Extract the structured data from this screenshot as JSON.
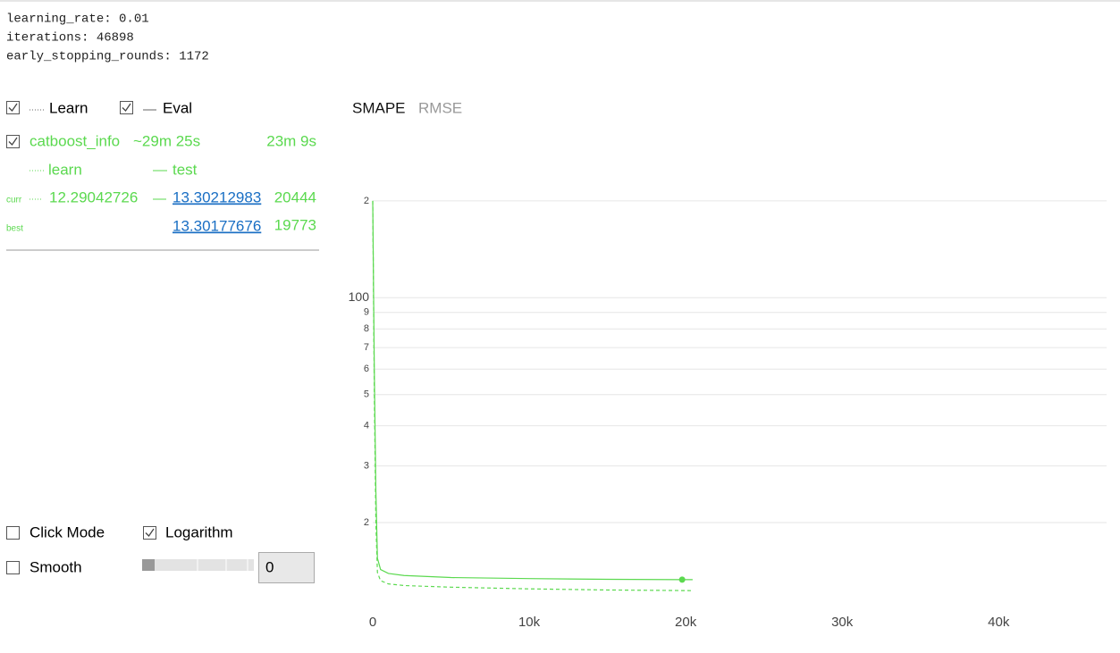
{
  "params": [
    "learning_rate: 0.01",
    "iterations: 46898",
    "early_stopping_rounds: 1172"
  ],
  "legend": {
    "learn": "Learn",
    "eval": "Eval"
  },
  "run": {
    "name": "catboost_info",
    "eta": "~29m 25s",
    "elapsed": "23m 9s",
    "learn_label": "learn",
    "test_label": "test",
    "curr_label": "curr",
    "curr_learn": "12.29042726",
    "curr_test": "13.30212983",
    "curr_iter": "20444",
    "best_label": "best",
    "best_test": "13.30177676",
    "best_iter": "19773"
  },
  "tabs": [
    "SMAPE",
    "RMSE"
  ],
  "controls": {
    "click_mode": "Click Mode",
    "logarithm": "Logarithm",
    "smooth": "Smooth",
    "smooth_value": "0"
  },
  "chart_data": {
    "type": "line",
    "log_y": true,
    "grid": true,
    "x": [
      0,
      100,
      200,
      300,
      500,
      1000,
      2000,
      5000,
      10000,
      15000,
      19773,
      20444
    ],
    "series": [
      {
        "name": "test",
        "color": "#5bd94f",
        "dashed": false,
        "values": [
          200,
          60,
          25,
          15.5,
          14.3,
          13.9,
          13.7,
          13.5,
          13.4,
          13.33,
          13.30177676,
          13.30212983
        ]
      },
      {
        "name": "learn",
        "color": "#5bd94f",
        "dashed": true,
        "values": [
          200,
          50,
          20,
          14,
          13.2,
          12.9,
          12.75,
          12.6,
          12.45,
          12.35,
          12.3,
          12.29042726
        ]
      }
    ],
    "best": {
      "x": 19773,
      "value": 13.30177676
    },
    "xlim": [
      0,
      46898
    ],
    "ylim": [
      10.9,
      213
    ],
    "xticks": [
      0,
      {
        "value": 10000,
        "label": "10k"
      },
      {
        "value": 20000,
        "label": "20k"
      },
      {
        "value": 30000,
        "label": "30k"
      },
      {
        "value": 40000,
        "label": "40k"
      }
    ],
    "yticks": [
      {
        "value": 200,
        "label": "2"
      },
      100,
      {
        "value": 90,
        "label": "9"
      },
      {
        "value": 80,
        "label": "8"
      },
      {
        "value": 70,
        "label": "7"
      },
      {
        "value": 60,
        "label": "6"
      },
      {
        "value": 50,
        "label": "5"
      },
      {
        "value": 40,
        "label": "4"
      },
      {
        "value": 30,
        "label": "3"
      },
      {
        "value": 20,
        "label": "2"
      }
    ]
  }
}
